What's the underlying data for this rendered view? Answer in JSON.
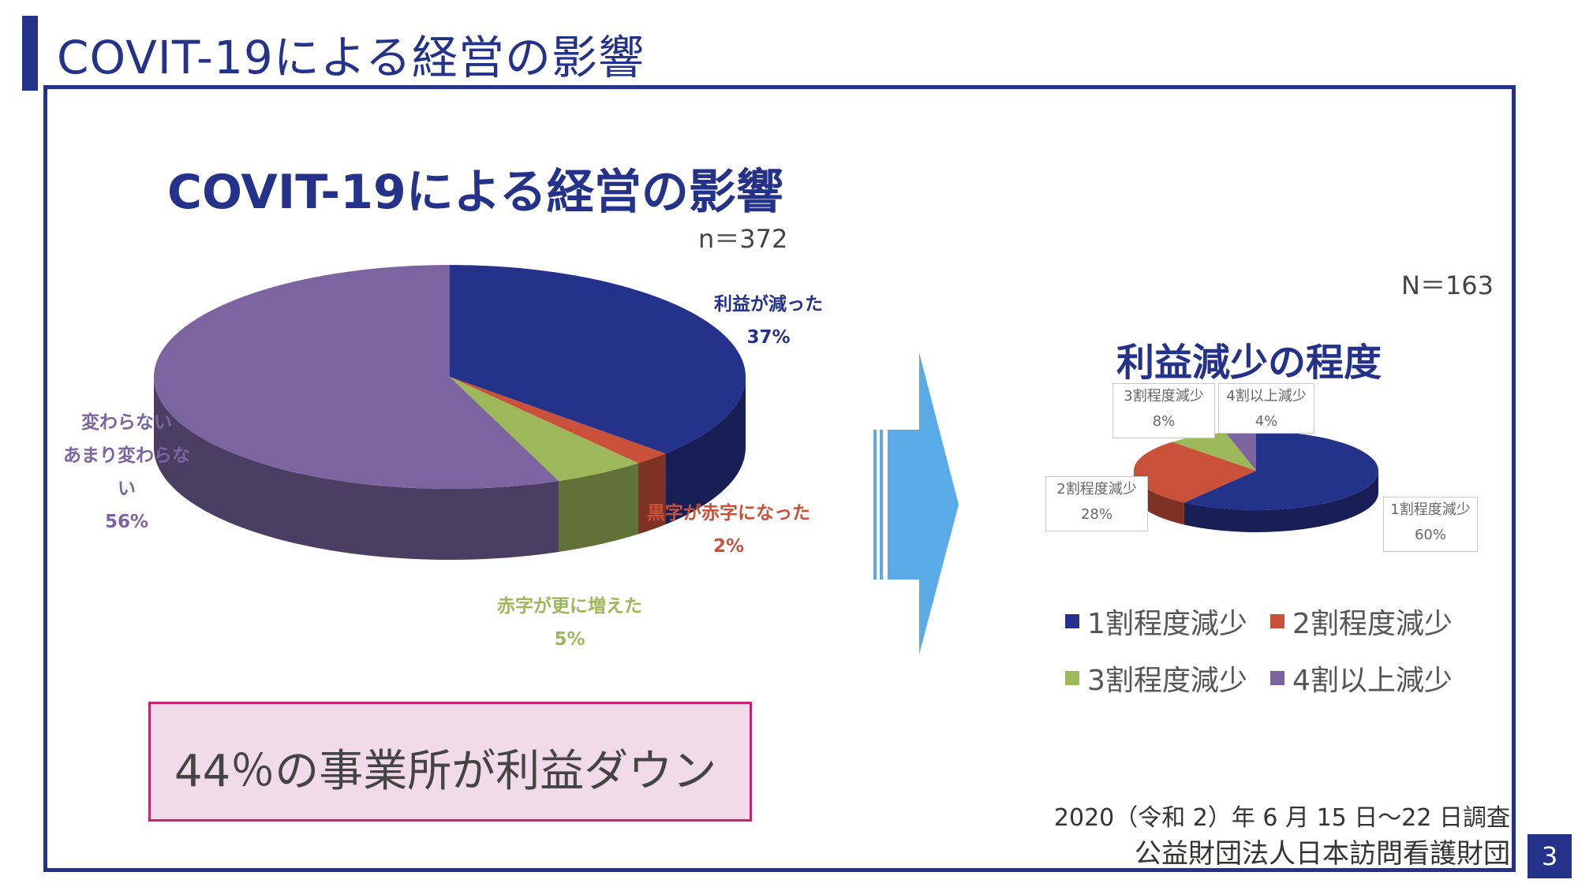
{
  "slide": {
    "title": "COVIT-19による経営の影響",
    "page_number": "3",
    "highlight": "44％の事業所が利益ダウン",
    "footer_date": "2020（令和 2）年 6 月 15 日～22 日調査",
    "footer_org": "公益財団法人日本訪問看護財団"
  },
  "colors": {
    "accent": "#25328a",
    "arrow": "#5aaae8",
    "highlight_border": "#c8236f",
    "highlight_fill": "#f1dbe8"
  },
  "chart_data": [
    {
      "type": "pie",
      "title": "COVIT-19による経営の影響",
      "n_label": "n＝372",
      "slices": [
        {
          "label": "利益が減った",
          "value": 37,
          "value_label": "37%",
          "color": "#25328a"
        },
        {
          "label": "黒字が赤字になった",
          "value": 2,
          "value_label": "2%",
          "color": "#c9513a"
        },
        {
          "label": "赤字が更に増えた",
          "value": 5,
          "value_label": "5%",
          "color": "#9cb85a"
        },
        {
          "label_lines": [
            "変わらない",
            "あまり変わらな",
            "い"
          ],
          "value": 56,
          "value_label": "56%",
          "color": "#7b64a0"
        }
      ]
    },
    {
      "type": "pie",
      "title": "利益減少の程度",
      "n_label": "N＝163",
      "slices": [
        {
          "label": "1割程度減少",
          "value": 60,
          "value_label": "60%",
          "color": "#25328a"
        },
        {
          "label": "2割程度減少",
          "value": 28,
          "value_label": "28%",
          "color": "#c9513a"
        },
        {
          "label": "3割程度減少",
          "value": 8,
          "value_label": "8%",
          "color": "#9cb85a"
        },
        {
          "label": "4割以上減少",
          "value": 4,
          "value_label": "4%",
          "color": "#7b64a0"
        }
      ],
      "legend": [
        "1割程度減少",
        "2割程度減少",
        "3割程度減少",
        "4割以上減少"
      ]
    }
  ]
}
